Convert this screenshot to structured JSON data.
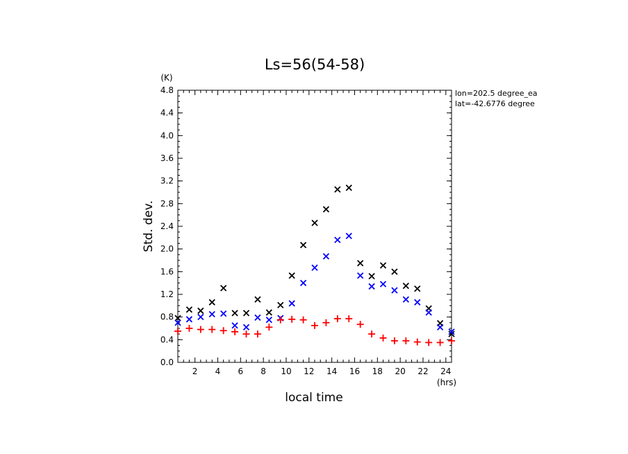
{
  "chart_data": {
    "type": "scatter",
    "title": "Ls=56(54-58)",
    "xlabel": "local time",
    "ylabel": "Std. dev.",
    "x_unit": "(hrs)",
    "y_unit": "(K)",
    "xlim": [
      0.5,
      24.5
    ],
    "ylim": [
      0.0,
      4.8
    ],
    "x_ticks": [
      2,
      4,
      6,
      8,
      10,
      12,
      14,
      16,
      18,
      20,
      22,
      24
    ],
    "y_ticks": [
      0.0,
      0.4,
      0.8,
      1.2,
      1.6,
      2.0,
      2.4,
      2.8,
      3.2,
      3.6,
      4.0,
      4.4,
      4.8
    ],
    "annotations": [
      "lon=202.5 degree_ea",
      "lat=-42.6776 degree"
    ],
    "grid": false,
    "x": [
      0.5,
      1.5,
      2.5,
      3.5,
      4.5,
      5.5,
      6.5,
      7.5,
      8.5,
      9.5,
      10.5,
      11.5,
      12.5,
      13.5,
      14.5,
      15.5,
      16.5,
      17.5,
      18.5,
      19.5,
      20.5,
      21.5,
      22.5,
      23.5,
      24.5
    ],
    "series": [
      {
        "marker": "x",
        "color": "#000000",
        "values": [
          0.78,
          0.93,
          0.91,
          1.06,
          1.31,
          0.87,
          0.87,
          1.11,
          0.88,
          1.01,
          1.53,
          2.07,
          2.46,
          2.7,
          3.05,
          3.08,
          1.75,
          1.52,
          1.71,
          1.6,
          1.35,
          1.3,
          0.95,
          0.69,
          0.5
        ]
      },
      {
        "marker": "x",
        "color": "#0000ff",
        "values": [
          0.7,
          0.76,
          0.8,
          0.85,
          0.86,
          0.65,
          0.62,
          0.79,
          0.75,
          0.78,
          1.04,
          1.4,
          1.67,
          1.87,
          2.16,
          2.23,
          1.53,
          1.34,
          1.38,
          1.27,
          1.11,
          1.06,
          0.88,
          0.62,
          0.54
        ]
      },
      {
        "marker": "+",
        "color": "#ff0000",
        "values": [
          0.55,
          0.6,
          0.58,
          0.58,
          0.56,
          0.54,
          0.5,
          0.5,
          0.62,
          0.75,
          0.76,
          0.75,
          0.65,
          0.7,
          0.77,
          0.77,
          0.67,
          0.5,
          0.43,
          0.38,
          0.38,
          0.36,
          0.35,
          0.35,
          0.38
        ]
      }
    ]
  }
}
